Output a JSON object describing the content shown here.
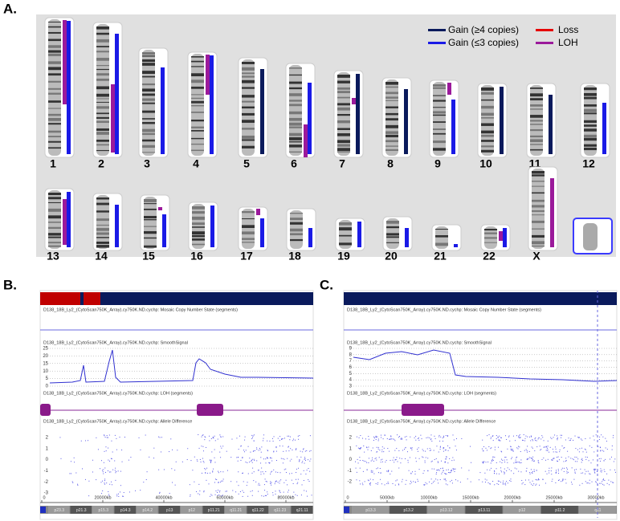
{
  "panel_a": {
    "label": "A.",
    "legend": [
      "Gain (≥4 copies)",
      "Gain (≤3 copies)",
      "Loss",
      "LOH"
    ],
    "chromosomes": [
      "1",
      "2",
      "3",
      "4",
      "5",
      "6",
      "7",
      "8",
      "9",
      "10",
      "11",
      "12",
      "13",
      "14",
      "15",
      "16",
      "17",
      "18",
      "19",
      "20",
      "21",
      "22",
      "X"
    ]
  },
  "panel_b": {
    "label": "B.",
    "tracks": [
      "D138_18B_Ly2_(CytoScan750K_Array).cy750K.ND.cychp: Mosaic Copy Number State (segments)",
      "D138_18B_Ly2_(CytoScan750K_Array).cy750K.ND.cychp: SmoothSignal",
      "D138_18B_Ly2_(CytoScan750K_Array).cy750K.ND.cychp: LOH (segments)",
      "D138_18B_Ly2_(CytoScan750K_Array).cy750K.ND.cychp: Allele Difference"
    ],
    "signal_ticks": [
      "25",
      "20",
      "15",
      "10",
      "5",
      "0"
    ],
    "allele_ticks": [
      "2",
      "1",
      "0",
      "-1",
      "-2",
      "-3"
    ],
    "positions": [
      "0",
      "20000kb",
      "40000kb",
      "60000kb",
      "80000kb"
    ],
    "bands": [
      "p23.3",
      "p21.3",
      "p15.3",
      "p14.3",
      "p14.2",
      "p13",
      "p12",
      "p11.21",
      "q11.21",
      "q11.22",
      "q11.23",
      "q21.11"
    ]
  },
  "panel_c": {
    "label": "C.",
    "tracks": [
      "D138_18B_Ly2_(CytoScan750K_Array).cy750K.ND.cychp: Mosaic Copy Number State (segments)",
      "D138_18B_Ly2_(CytoScan750K_Array).cy750K.ND.cychp: SmoothSignal",
      "D138_18B_Ly2_(CytoScan750K_Array).cy750K.ND.cychp: LOH (segments)",
      "D138_18B_Ly2_(CytoScan750K_Array).cy750K.ND.cychp: Allele Difference"
    ],
    "signal_ticks": [
      "9",
      "8",
      "7",
      "6",
      "5",
      "4",
      "3"
    ],
    "allele_ticks": [
      "2",
      "1",
      "0",
      "-1",
      "-2"
    ],
    "positions": [
      "0",
      "5000kb",
      "10000kb",
      "15000kb",
      "20000kb",
      "25000kb",
      "30000kb"
    ],
    "bands": [
      "p13.3",
      "p13.2",
      "p13.12",
      "p13.11",
      "p12",
      "p11.2",
      "q11"
    ]
  }
}
